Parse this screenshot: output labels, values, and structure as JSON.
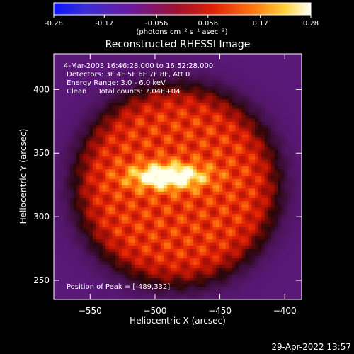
{
  "chart_data": {
    "type": "heatmap",
    "title": "Reconstructed RHESSI Image",
    "xlabel": "Heliocentric X (arcsec)",
    "ylabel": "Heliocentric Y (arcsec)",
    "xlim": [
      -578,
      -387
    ],
    "ylim": [
      235,
      428
    ],
    "xticks": [
      -550,
      -500,
      -450,
      -400
    ],
    "yticks": [
      250,
      300,
      350,
      400
    ],
    "colorbar": {
      "min": -0.28,
      "max": 0.28,
      "ticks": [
        "-0.28",
        "-0.17",
        "-0.056",
        "0.056",
        "0.17",
        "0.28"
      ],
      "unit": "(photons cm⁻² s⁻¹ asec⁻²)"
    },
    "annotations": [
      "4-Mar-2003 16:46:28.000 to 16:52:28.000",
      "Detectors: 3F 4F 5F 6F 7F 8F, Att 0",
      "Energy Range: 3.0 - 6.0 keV",
      "Clean     Total counts: 7.04E+04"
    ],
    "peak_label": "Position of Peak = [-489,332]",
    "peak": {
      "x": -489,
      "y": 332,
      "value": 0.28
    },
    "source": {
      "x": -490,
      "y": 332,
      "sigma_x": 20,
      "sigma_y": 7
    },
    "disk": {
      "x": -483,
      "y": 325,
      "radius": 74
    },
    "colors": {
      "background": "#000000",
      "low": "#3a1a8c",
      "mid": "#c81e0a",
      "high": "#ffffff"
    }
  },
  "footer": {
    "date": "29-Apr-2022 13:57"
  }
}
